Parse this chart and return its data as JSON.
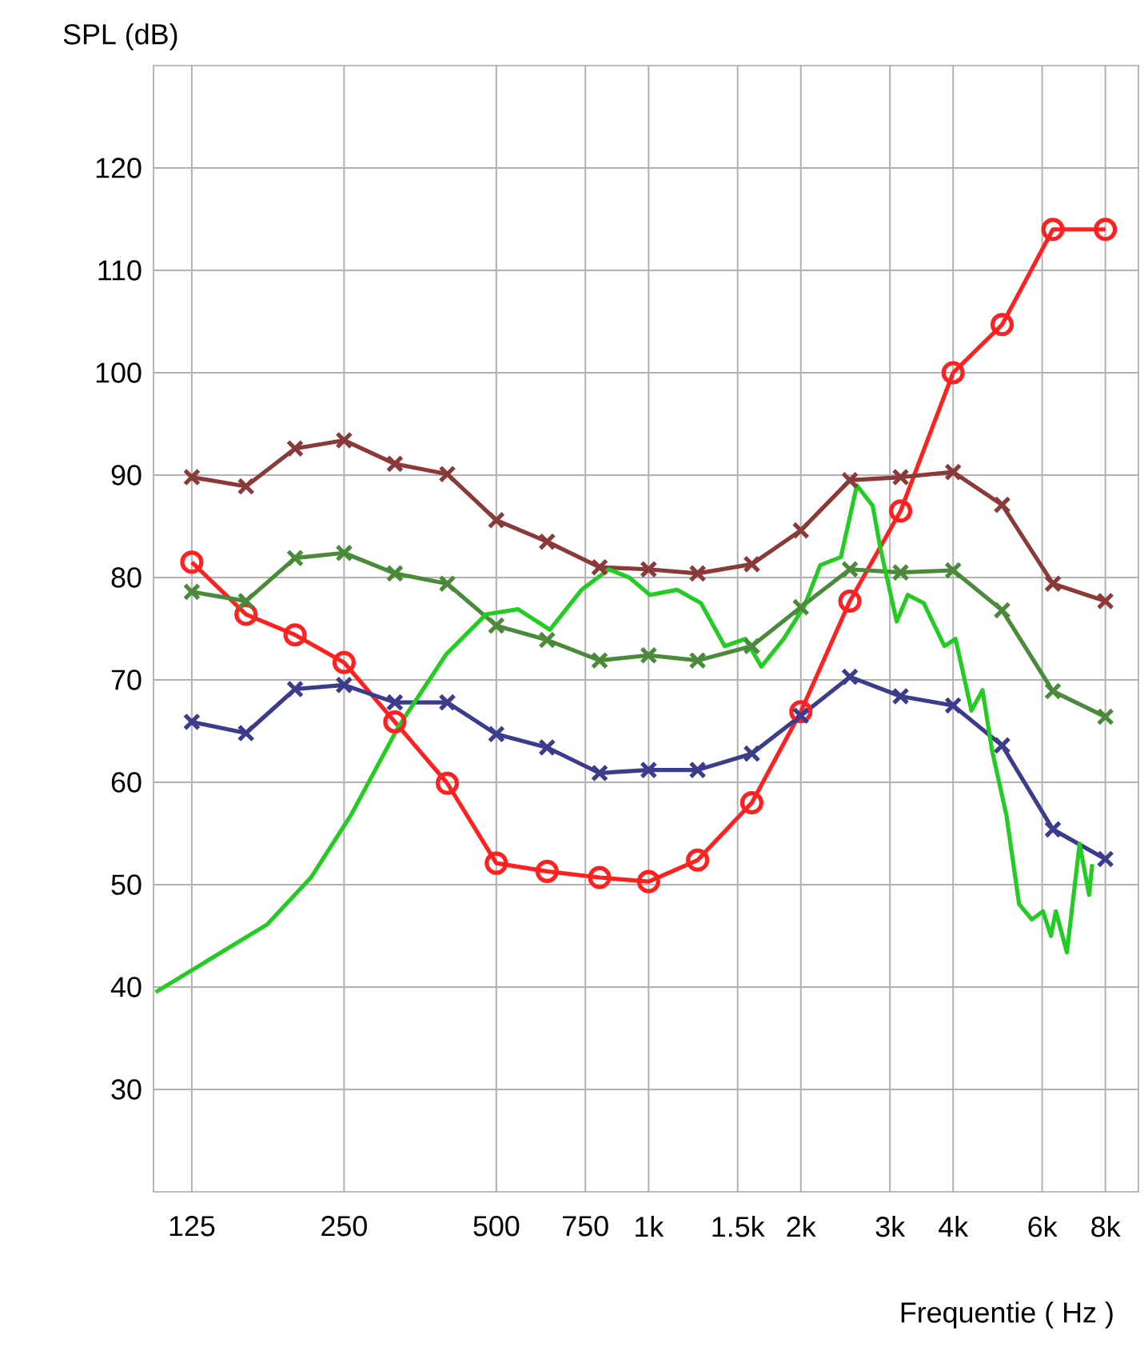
{
  "chart_data": {
    "type": "line",
    "xlabel": "Frequentie ( Hz )",
    "ylabel": "SPL (dB)",
    "log": "x",
    "grid": true,
    "xlim": [
      105,
      9300
    ],
    "ylim": [
      20,
      130
    ],
    "xticks": [
      125,
      250,
      500,
      750,
      {
        "value": 1000,
        "label": "1k"
      },
      {
        "value": 1500,
        "label": "1.5k"
      },
      {
        "value": 2000,
        "label": "2k"
      },
      {
        "value": 3000,
        "label": "3k"
      },
      {
        "value": 4000,
        "label": "4k"
      },
      {
        "value": 6000,
        "label": "6k"
      },
      {
        "value": 8000,
        "label": "8k"
      }
    ],
    "yticks": [
      30,
      40,
      50,
      60,
      70,
      80,
      90,
      100,
      110,
      120
    ],
    "series": [
      {
        "color": "#ff2020",
        "marker": "circle",
        "x": [
          125,
          160,
          200,
          250,
          315,
          400,
          500,
          630,
          800,
          1000,
          1250,
          1600,
          2000,
          2500,
          3150,
          4000,
          5000,
          6300,
          8000
        ],
        "values": [
          81.5,
          76.4,
          74.4,
          71.7,
          65.9,
          59.9,
          52.1,
          51.3,
          50.7,
          50.3,
          52.4,
          58,
          66.9,
          77.7,
          86.5,
          100,
          104.7,
          114,
          114
        ]
      },
      {
        "color": "#8b3a3a",
        "marker": "cross",
        "x": [
          125,
          160,
          200,
          250,
          315,
          400,
          500,
          630,
          800,
          1000,
          1250,
          1600,
          2000,
          2500,
          3150,
          4000,
          5000,
          6300,
          8000
        ],
        "values": [
          89.8,
          88.9,
          92.6,
          93.4,
          91.1,
          90.1,
          85.6,
          83.5,
          81,
          80.8,
          80.4,
          81.3,
          84.6,
          89.5,
          89.8,
          90.3,
          87.1,
          79.4,
          77.7
        ]
      },
      {
        "color": "#4a8a3a",
        "marker": "cross",
        "x": [
          125,
          160,
          200,
          250,
          315,
          400,
          500,
          630,
          800,
          1000,
          1250,
          1600,
          2000,
          2500,
          3150,
          4000,
          5000,
          6300,
          8000
        ],
        "values": [
          78.6,
          77.7,
          81.9,
          82.4,
          80.4,
          79.4,
          75.3,
          73.9,
          71.9,
          72.4,
          71.9,
          73.3,
          77.1,
          80.8,
          80.5,
          80.7,
          76.8,
          68.9,
          66.4
        ]
      },
      {
        "color": "#3c3c8c",
        "marker": "cross",
        "x": [
          125,
          160,
          200,
          250,
          315,
          400,
          500,
          630,
          800,
          1000,
          1250,
          1600,
          2000,
          2500,
          3150,
          4000,
          5000,
          6300,
          8000
        ],
        "values": [
          65.9,
          64.8,
          69.1,
          69.5,
          67.8,
          67.8,
          64.7,
          63.4,
          60.9,
          61.2,
          61.2,
          62.8,
          66.5,
          70.3,
          68.4,
          67.5,
          63.6,
          55.4,
          52.5
        ]
      },
      {
        "color": "#22cc22",
        "marker": "none",
        "x": [
          106,
          176,
          215,
          258,
          320,
          398,
          477,
          552,
          638,
          737,
          834,
          916,
          1006,
          1138,
          1269,
          1414,
          1554,
          1671,
          1849,
          2032,
          2184,
          2400,
          2581,
          2774,
          2877,
          3094,
          3254,
          3499,
          3845,
          4045,
          4348,
          4573,
          4776,
          5098,
          5402,
          5725,
          6021,
          6245,
          6384,
          6715,
          7115,
          7429,
          7538
        ],
        "values": [
          39.5,
          46.1,
          50.7,
          56.8,
          65.4,
          72.5,
          76.4,
          76.9,
          74.9,
          78.8,
          80.8,
          80,
          78.3,
          78.8,
          77.5,
          73.3,
          74,
          71.3,
          74,
          77.2,
          81.2,
          82,
          89,
          87,
          82.7,
          75.7,
          78.3,
          77.5,
          73.3,
          74,
          67,
          69,
          63.1,
          56.8,
          48.1,
          46.6,
          47.4,
          45,
          47.4,
          43.4,
          54,
          49,
          52
        ]
      }
    ]
  }
}
